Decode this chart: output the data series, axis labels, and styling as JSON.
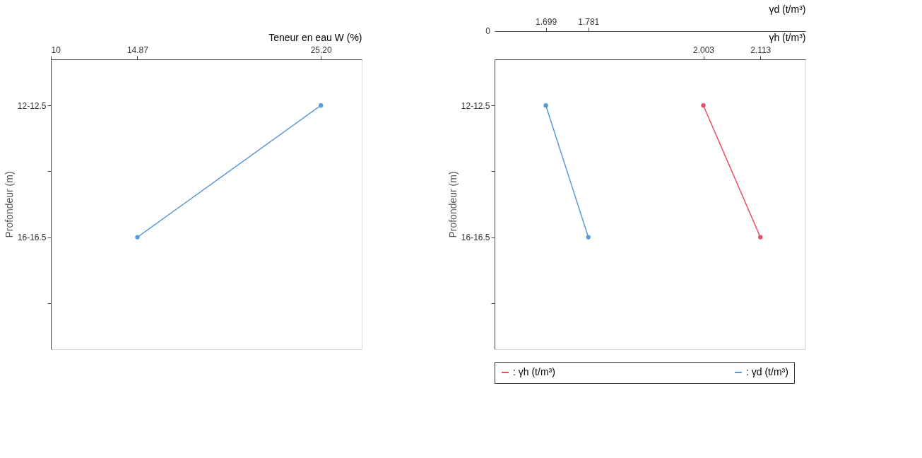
{
  "chart_data": [
    {
      "type": "line",
      "orientation": "horizontal",
      "xlabel": "Teneur en eau W (%)",
      "ylabel": "Profondeur (m)",
      "categories": [
        "12-12.5",
        null,
        "16-16.5",
        null
      ],
      "xlim": [
        10,
        27.5
      ],
      "xticks": [
        10,
        14.87,
        {
          "value": 25.2,
          "label": "25.20"
        }
      ],
      "marker": "circle",
      "grid": false,
      "series": [
        {
          "color": "#5b9bd5",
          "values": [
            25.2,
            null,
            14.87,
            null
          ]
        }
      ]
    },
    {
      "type": "line",
      "orientation": "horizontal",
      "xlabel": "γd (t/m³)",
      "x2label": "γh (t/m³)",
      "ylabel": "Profondeur  (m)",
      "categories": [
        "12-12.5",
        null,
        "16-16.5",
        null
      ],
      "xlim": [
        1.6,
        2.2
      ],
      "xticks": [
        1.699,
        1.781
      ],
      "x2lim": [
        1.6,
        2.2
      ],
      "x2ticks": [
        2.003,
        2.113
      ],
      "marker": "circle",
      "grid": false,
      "legend": "bottom",
      "annotations": [
        "0"
      ],
      "series": [
        {
          "name": ": γh (t/m³)",
          "color": "#e8506a",
          "axis": "x2",
          "values": [
            2.003,
            null,
            2.113,
            null
          ]
        },
        {
          "name": ": γd (t/m³)",
          "color": "#5b9bd5",
          "values": [
            1.699,
            null,
            1.781,
            null
          ]
        }
      ]
    }
  ]
}
